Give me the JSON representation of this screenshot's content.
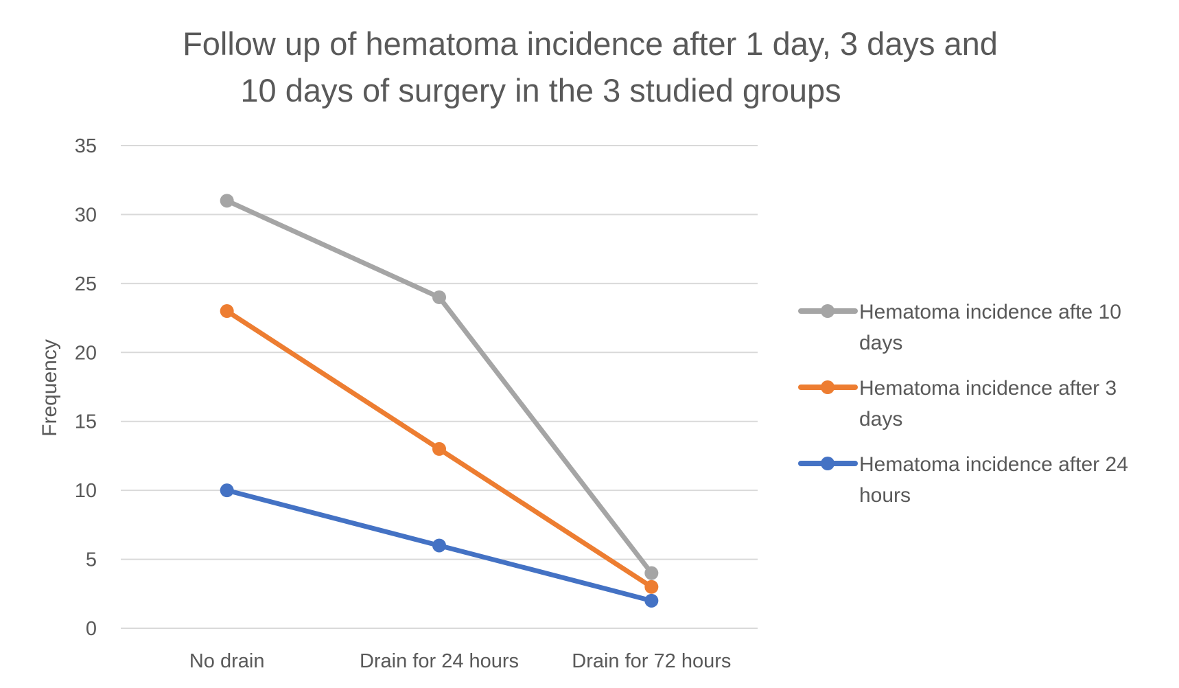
{
  "chart_data": {
    "type": "line",
    "title": [
      "Follow up of hematoma incidence after 1 day, 3 days and",
      "10 days of surgery in the 3 studied groups"
    ],
    "xlabel": "",
    "ylabel": "Frequency",
    "categories": [
      "No drain",
      "Drain for 24 hours",
      "Drain for 72 hours"
    ],
    "ylim": [
      0,
      35
    ],
    "yticks": [
      0,
      5,
      10,
      15,
      20,
      25,
      30,
      35
    ],
    "grid": true,
    "legend_position": "right",
    "series": [
      {
        "name": "Hematoma incidence afte 10 days",
        "legend_lines": [
          "Hematoma incidence afte 10",
          "days"
        ],
        "color": "#A5A5A5",
        "values": [
          31,
          24,
          4
        ]
      },
      {
        "name": "Hematoma incidence after 3 days",
        "legend_lines": [
          "Hematoma incidence after 3",
          "days"
        ],
        "color": "#ED7D31",
        "values": [
          23,
          13,
          3
        ]
      },
      {
        "name": "Hematoma incidence after 24 hours",
        "legend_lines": [
          "Hematoma incidence after 24",
          "hours"
        ],
        "color": "#4472C4",
        "values": [
          10,
          6,
          2
        ]
      }
    ]
  }
}
